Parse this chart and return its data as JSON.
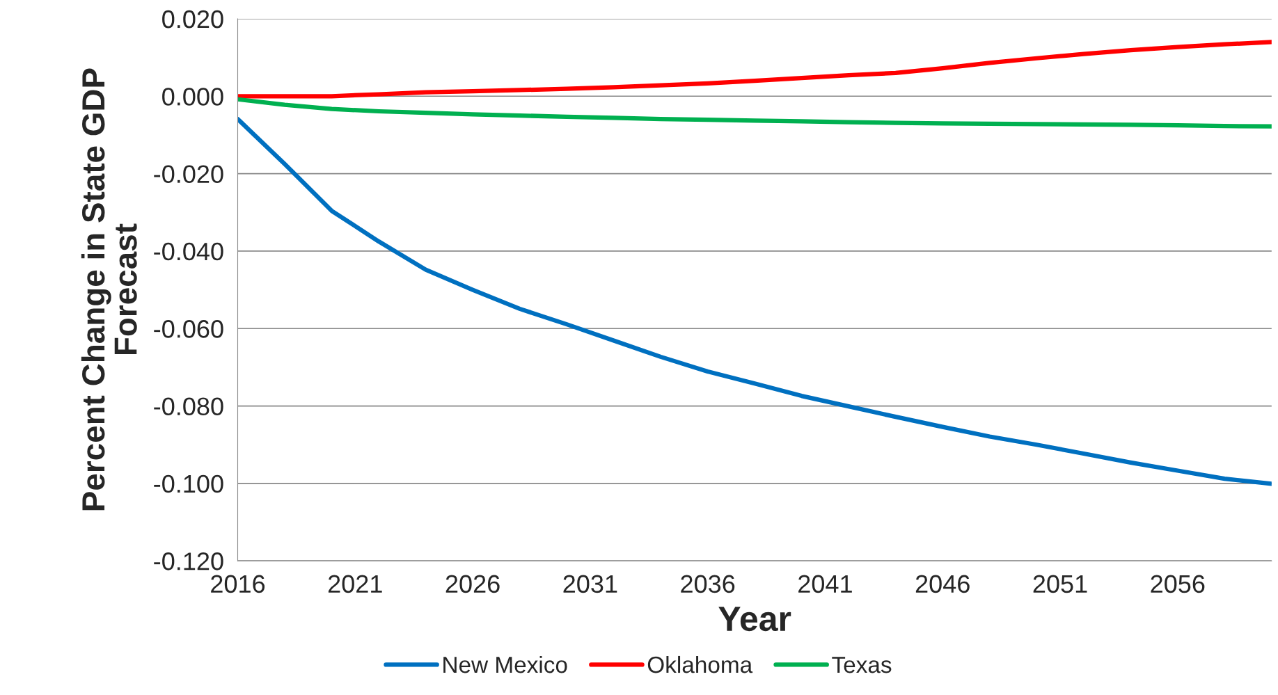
{
  "chart_data": {
    "type": "line",
    "xlabel": "Year",
    "ylabel": "Percent Change in State GDP Forecast",
    "x": [
      2016,
      2018,
      2020,
      2022,
      2024,
      2026,
      2028,
      2030,
      2032,
      2034,
      2036,
      2038,
      2040,
      2042,
      2044,
      2046,
      2048,
      2050,
      2052,
      2054,
      2056,
      2058,
      2060
    ],
    "series": [
      {
        "name": "New Mexico",
        "color": "#0070c0",
        "values": [
          -0.0059,
          -0.0175,
          -0.0296,
          -0.0375,
          -0.0448,
          -0.05,
          -0.0549,
          -0.0589,
          -0.0631,
          -0.0673,
          -0.0711,
          -0.0742,
          -0.0774,
          -0.0801,
          -0.0828,
          -0.0854,
          -0.0879,
          -0.09,
          -0.0923,
          -0.0946,
          -0.0967,
          -0.0988,
          -0.1001
        ]
      },
      {
        "name": "Oklahoma",
        "color": "#ff0000",
        "values": [
          0.0,
          0.0,
          0.0,
          0.0005,
          0.001,
          0.0013,
          0.0016,
          0.0019,
          0.0023,
          0.0028,
          0.0033,
          0.004,
          0.0047,
          0.0054,
          0.006,
          0.0072,
          0.0086,
          0.0098,
          0.0109,
          0.0119,
          0.0127,
          0.0134,
          0.014
        ]
      },
      {
        "name": "Texas",
        "color": "#00b050",
        "values": [
          -0.0008,
          -0.0022,
          -0.0033,
          -0.0039,
          -0.0043,
          -0.0047,
          -0.005,
          -0.0053,
          -0.0056,
          -0.0059,
          -0.0061,
          -0.0063,
          -0.0065,
          -0.0067,
          -0.0069,
          -0.007,
          -0.0071,
          -0.0072,
          -0.0073,
          -0.0074,
          -0.0075,
          -0.0077,
          -0.0078
        ]
      }
    ],
    "xlim": [
      2016,
      2060
    ],
    "xticks": [
      2016,
      2021,
      2026,
      2031,
      2036,
      2041,
      2046,
      2051,
      2056
    ],
    "ylim": [
      -0.12,
      0.02
    ],
    "yticks": [
      {
        "value": -0.12,
        "label": "-0.120"
      },
      {
        "value": -0.1,
        "label": "-0.100"
      },
      {
        "value": -0.08,
        "label": "-0.080"
      },
      {
        "value": -0.06,
        "label": "-0.060"
      },
      {
        "value": -0.04,
        "label": "-0.040"
      },
      {
        "value": -0.02,
        "label": "-0.020"
      },
      {
        "value": 0.0,
        "label": "0.000"
      },
      {
        "value": 0.02,
        "label": "0.020"
      }
    ],
    "grid": "y",
    "legend": "bottom",
    "marker": "none",
    "line_style": "solid"
  }
}
